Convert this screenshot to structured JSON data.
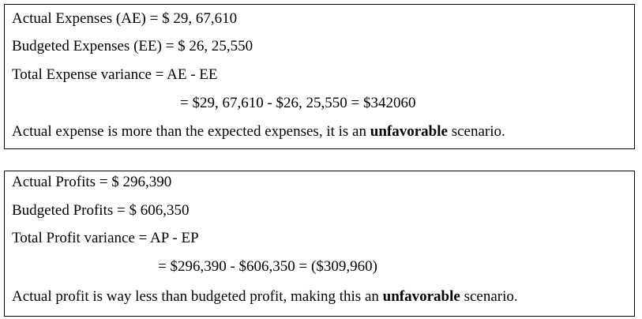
{
  "boxes": [
    {
      "lines": [
        "Actual Expenses (AE) = $ 29, 67,610",
        "Budgeted Expenses (EE) = $ 26, 25,550",
        "Total Expense variance = AE - EE",
        "= $29, 67,610 - $26, 25,550 = $342060"
      ],
      "conclusion": {
        "before": "Actual expense is more than the expected expenses, it is an ",
        "emphasis": "unfavorable",
        "after": " scenario."
      }
    },
    {
      "lines": [
        "Actual Profits = $ 296,390",
        "Budgeted Profits = $ 606,350",
        "Total Profit variance = AP - EP",
        "= $296,390 - $606,350 = ($309,960)"
      ],
      "conclusion": {
        "before": "Actual profit is way less than budgeted profit, making this an ",
        "emphasis": "unfavorable",
        "after": " scenario."
      }
    }
  ]
}
